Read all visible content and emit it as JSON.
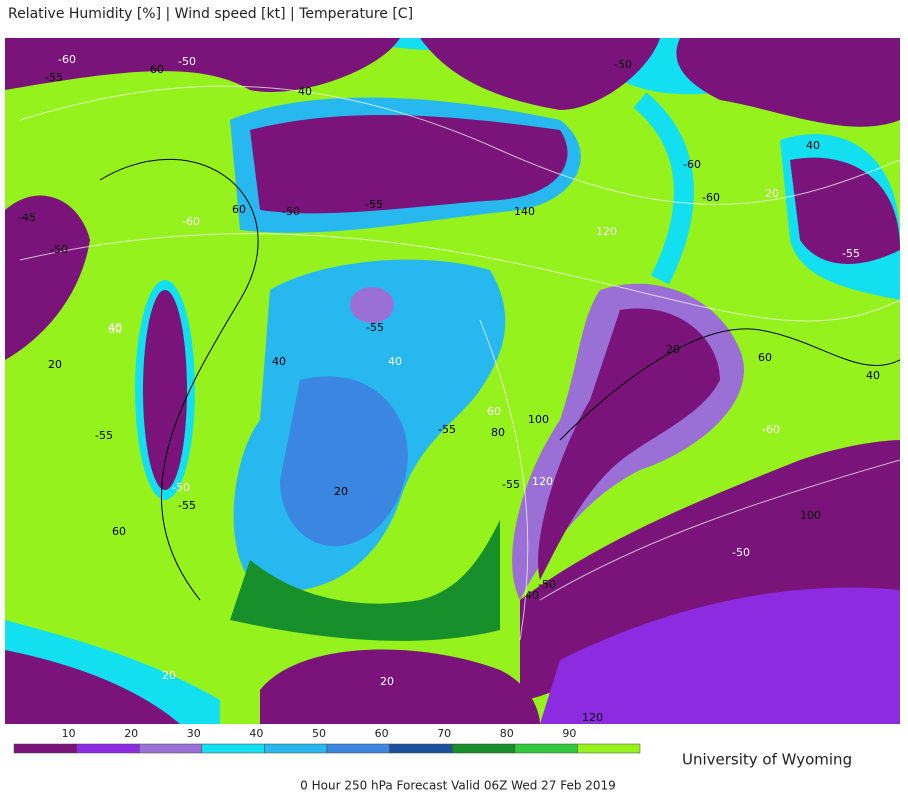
{
  "header": {
    "title": "Relative Humidity [%] | Wind speed [kt] | Temperature [C]"
  },
  "map": {
    "contour_labels": [
      "-55",
      "-50",
      "-45",
      "-50",
      "-60",
      "60",
      "40",
      "-60",
      "-55",
      "-50",
      "40",
      "20",
      "-55",
      "-50",
      "-55",
      "60",
      "60",
      "40",
      "-55",
      "40",
      "20",
      "-55",
      "60",
      "80",
      "100",
      "120",
      "-55",
      "140",
      "120",
      "-60",
      "-50",
      "20",
      "40",
      "-60",
      "-55",
      "60",
      "40",
      "-60",
      "20",
      "100",
      "-50",
      "40",
      "-50",
      "20",
      "120",
      "60",
      "20"
    ]
  },
  "legend": {
    "ticks": [
      10,
      20,
      30,
      40,
      50,
      60,
      70,
      80,
      90
    ],
    "colors": [
      "#7a137a",
      "#8c2be0",
      "#9a6fd6",
      "#12e0f0",
      "#28b8f0",
      "#3a86e0",
      "#1d4f9c",
      "#178f2a",
      "#2fc83a",
      "#96f21c"
    ]
  },
  "credit": "University of Wyoming",
  "caption": "0 Hour 250 hPa Forecast Valid 06Z Wed 27 Feb 2019"
}
